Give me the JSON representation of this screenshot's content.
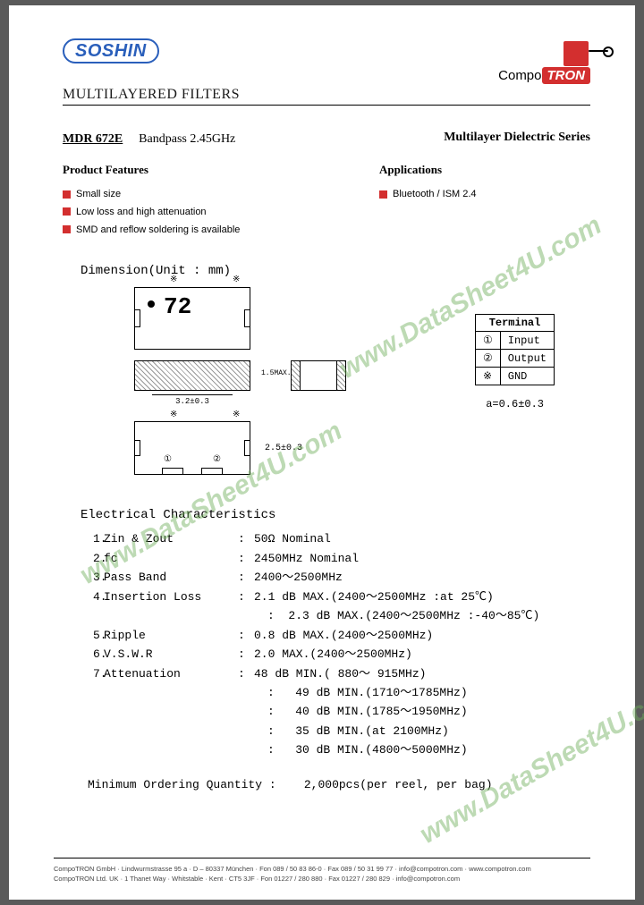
{
  "header": {
    "logo_left": "SOSHIN",
    "logo_right_compo": "Compo",
    "logo_right_tron": "TRON",
    "title": "MULTILAYERED FILTERS"
  },
  "product": {
    "model": "MDR 672E",
    "bandpass": "Bandpass 2.45GHz",
    "series": "Multilayer Dielectric Series"
  },
  "features": {
    "heading": "Product Features",
    "items": [
      "Small size",
      "Low loss and high attenuation",
      "SMD and reflow soldering is available"
    ]
  },
  "applications": {
    "heading": "Applications",
    "items": [
      "Bluetooth / ISM 2.4"
    ]
  },
  "dimension": {
    "label": "Dimension(Unit : mm)",
    "chip_label": "72",
    "dim_w": "3.2±0.3",
    "dim_h": "2.5±0.3",
    "dim_t": "1.5MAX.",
    "a_note": "a=0.6±0.3",
    "terminal_head": "Terminal",
    "terminals": [
      {
        "sym": "①",
        "name": "Input"
      },
      {
        "sym": "②",
        "name": "Output"
      },
      {
        "sym": "※",
        "name": "GND"
      }
    ],
    "sym_gnd": "※",
    "sym_in": "①",
    "sym_out": "②"
  },
  "electrical": {
    "heading": "Electrical Characteristics",
    "rows": [
      {
        "n": "1.",
        "name": "Zin & Zout",
        "val": "50Ω Nominal"
      },
      {
        "n": "2.",
        "name": "fc",
        "val": "2450MHz Nominal"
      },
      {
        "n": "3.",
        "name": "Pass Band",
        "val": "2400～2500MHz"
      },
      {
        "n": "4.",
        "name": "Insertion Loss",
        "val": "2.1 dB MAX.(2400～2500MHz :at 25℃)"
      },
      {
        "n": "",
        "name": "",
        "val": "2.3 dB MAX.(2400～2500MHz :-40～85℃)"
      },
      {
        "n": "5.",
        "name": "Ripple",
        "val": "0.8 dB MAX.(2400～2500MHz)"
      },
      {
        "n": "6.",
        "name": "V.S.W.R",
        "val": " 2.0 MAX.(2400～2500MHz)"
      },
      {
        "n": "7.",
        "name": "Attenuation",
        "val": " 48 dB MIN.( 880～ 915MHz)"
      },
      {
        "n": "",
        "name": "",
        "val": " 49 dB MIN.(1710～1785MHz)"
      },
      {
        "n": "",
        "name": "",
        "val": " 40 dB MIN.(1785～1950MHz)"
      },
      {
        "n": "",
        "name": "",
        "val": " 35 dB MIN.(at 2100MHz)"
      },
      {
        "n": "",
        "name": "",
        "val": " 30 dB MIN.(4800～5000MHz)"
      }
    ]
  },
  "moq": {
    "label": "Minimum Ordering Quantity :",
    "value": "2,000pcs(per reel, per bag)"
  },
  "footer": {
    "line1": "CompoTRON GmbH · Lindwurmstrasse 95 a · D – 80337 München · Fon 089 / 50 83 86-0 · Fax 089 / 50 31 99 77 · info@compotron.com · www.compotron.com",
    "line2": "CompoTRON Ltd. UK · 1 Thanet Way · Whitstable · Kent · CT5 3JF · Fon 01227 / 280 880 · Fax 01227 / 280 829 · info@compotron.com"
  },
  "watermark": "www.DataSheet4U.com",
  "colors": {
    "accent_red": "#d32f2f",
    "soshin_blue": "#2a5fbb",
    "watermark_green": "#6fae5a"
  }
}
